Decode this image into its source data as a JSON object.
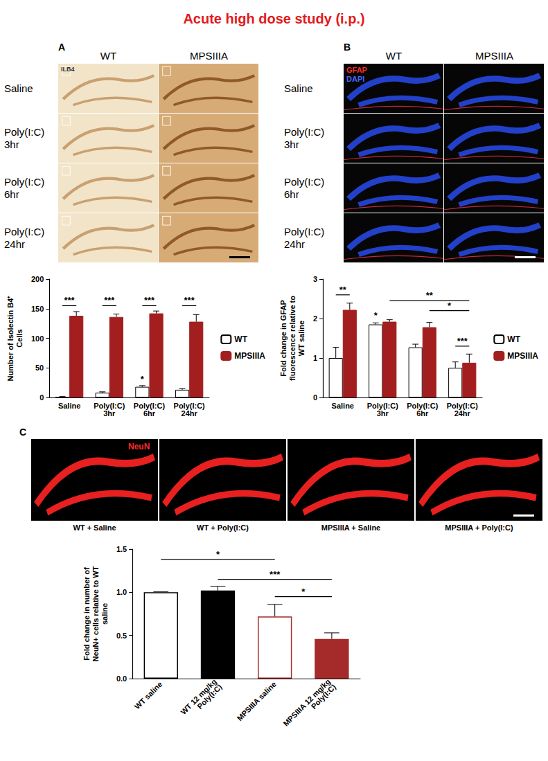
{
  "title": "Acute high dose study (i.p.)",
  "panels": [
    {
      "letter": "A",
      "columns": [
        "WT",
        "MPSIIIA"
      ],
      "rows": [
        "Saline",
        "Poly(I:C) 3hr",
        "Poly(I:C) 6hr",
        "Poly(I:C) 24hr"
      ],
      "stain_labels": [
        {
          "text": "ILB4",
          "color": "#333333"
        }
      ]
    },
    {
      "letter": "B",
      "columns": [
        "WT",
        "MPSIIIA"
      ],
      "rows": [
        "Saline",
        "Poly(I:C) 3hr",
        "Poly(I:C) 6hr",
        "Poly(I:C) 24hr"
      ],
      "stain_labels": [
        {
          "text": "GFAP",
          "color": "#ff2a2a"
        },
        {
          "text": "DAPI",
          "color": "#4a66ff"
        }
      ]
    },
    {
      "letter": "C",
      "captions": [
        "WT + Saline",
        "WT + Poly(I:C)",
        "MPSIIIA + Saline",
        "MPSIIIA + Poly(I:C)"
      ],
      "stain_labels": [
        {
          "text": "NeuN",
          "color": "#ff2a2a"
        }
      ]
    }
  ],
  "chart_data": [
    {
      "type": "bar",
      "y_label": "Number of Isolectin B4⁺ Cells",
      "categories": [
        "Saline",
        "Poly(I:C) 3hr",
        "Poly(I:C) 6hr",
        "Poly(I:C) 24hr"
      ],
      "series": [
        {
          "name": "WT",
          "color": "#ffffff",
          "values": [
            1,
            8,
            18,
            13
          ],
          "errors": [
            0.5,
            1.5,
            2,
            2
          ]
        },
        {
          "name": "MPSIIIA",
          "color": "#a31f1f",
          "values": [
            138,
            136,
            142,
            128
          ],
          "errors": [
            7,
            5,
            4,
            12
          ]
        }
      ],
      "ylim": [
        0,
        200
      ],
      "yticks": [
        0,
        50,
        100,
        150,
        200
      ],
      "grid": false,
      "legend": "right",
      "annotations": [
        {
          "text": "***",
          "from": [
            "Saline",
            "WT"
          ],
          "to": [
            "Saline",
            "MPSIIIA"
          ],
          "y": 155
        },
        {
          "text": "***",
          "from": [
            "Poly(I:C) 3hr",
            "WT"
          ],
          "to": [
            "Poly(I:C) 3hr",
            "MPSIIIA"
          ],
          "y": 155
        },
        {
          "text": "***",
          "from": [
            "Poly(I:C) 6hr",
            "WT"
          ],
          "to": [
            "Poly(I:C) 6hr",
            "MPSIIIA"
          ],
          "y": 155
        },
        {
          "text": "***",
          "from": [
            "Poly(I:C) 24hr",
            "WT"
          ],
          "to": [
            "Poly(I:C) 24hr",
            "MPSIIIA"
          ],
          "y": 155
        },
        {
          "text": "*",
          "from": [
            "Poly(I:C) 6hr",
            "WT"
          ],
          "to": [
            "Poly(I:C) 6hr",
            "WT"
          ],
          "y": 22
        }
      ]
    },
    {
      "type": "bar",
      "y_label": "Fold change in GFAP fluorescence relative to WT saline",
      "categories": [
        "Saline",
        "Poly(I:C) 3hr",
        "Poly(I:C) 6hr",
        "Poly(I:C) 24hr"
      ],
      "series": [
        {
          "name": "WT",
          "color": "#ffffff",
          "values": [
            1.0,
            1.85,
            1.27,
            0.75
          ],
          "errors": [
            0.27,
            0.04,
            0.08,
            0.15
          ]
        },
        {
          "name": "MPSIIIA",
          "color": "#a31f1f",
          "values": [
            2.22,
            1.92,
            1.78,
            0.88
          ],
          "errors": [
            0.17,
            0.05,
            0.12,
            0.22
          ]
        }
      ],
      "ylim": [
        0,
        3
      ],
      "yticks": [
        0,
        1,
        2,
        3
      ],
      "grid": false,
      "legend": "right",
      "annotations": [
        {
          "text": "**",
          "from": [
            "Saline",
            "WT"
          ],
          "to": [
            "Saline",
            "MPSIIIA"
          ],
          "y": 2.6
        },
        {
          "text": "*",
          "from": [
            "Poly(I:C) 3hr",
            "WT"
          ],
          "to": [
            "Poly(I:C) 3hr",
            "WT"
          ],
          "y": 1.95
        },
        {
          "text": "**",
          "from": [
            "Poly(I:C) 3hr",
            "MPSIIIA"
          ],
          "to": [
            "Poly(I:C) 24hr",
            "MPSIIIA"
          ],
          "y": 2.45
        },
        {
          "text": "*",
          "from": [
            "Poly(I:C) 6hr",
            "MPSIIIA"
          ],
          "to": [
            "Poly(I:C) 24hr",
            "MPSIIIA"
          ],
          "y": 2.2
        },
        {
          "text": "***",
          "from": [
            "Poly(I:C) 24hr",
            "WT"
          ],
          "to": [
            "Poly(I:C) 24hr",
            "MPSIIIA"
          ],
          "y": 1.3
        }
      ]
    },
    {
      "type": "bar",
      "y_label": "Fold change in number of NeuN+ cells relative to WT saline",
      "categories": [
        "WT saline",
        "WT 12 mg/kg Poly(I:C)",
        "MPSIIIA saline",
        "MPSIIIA 12 mg/kg Poly(I:C)"
      ],
      "values": [
        1.0,
        1.02,
        0.72,
        0.46
      ],
      "errors": [
        0.005,
        0.05,
        0.14,
        0.07
      ],
      "colors": [
        "#ffffff",
        "#000000",
        "#ffffff",
        "#a52a2a"
      ],
      "ylim": [
        0,
        1.5
      ],
      "yticks": [
        {
          "value": 0,
          "label": "0.0"
        },
        {
          "value": 0.5,
          "label": "0.5"
        },
        {
          "value": 1,
          "label": "1.0"
        },
        {
          "value": 1.5,
          "label": "1.5"
        }
      ],
      "grid": false,
      "annotations": [
        {
          "text": "*",
          "from": "WT saline",
          "to": "MPSIIIA saline",
          "y": 1.38
        },
        {
          "text": "***",
          "from": "WT 12 mg/kg Poly(I:C)",
          "to": "MPSIIIA 12 mg/kg Poly(I:C)",
          "y": 1.15
        },
        {
          "text": "*",
          "from": "MPSIIIA saline",
          "to": "MPSIIIA 12 mg/kg Poly(I:C)",
          "y": 0.95
        }
      ]
    }
  ]
}
